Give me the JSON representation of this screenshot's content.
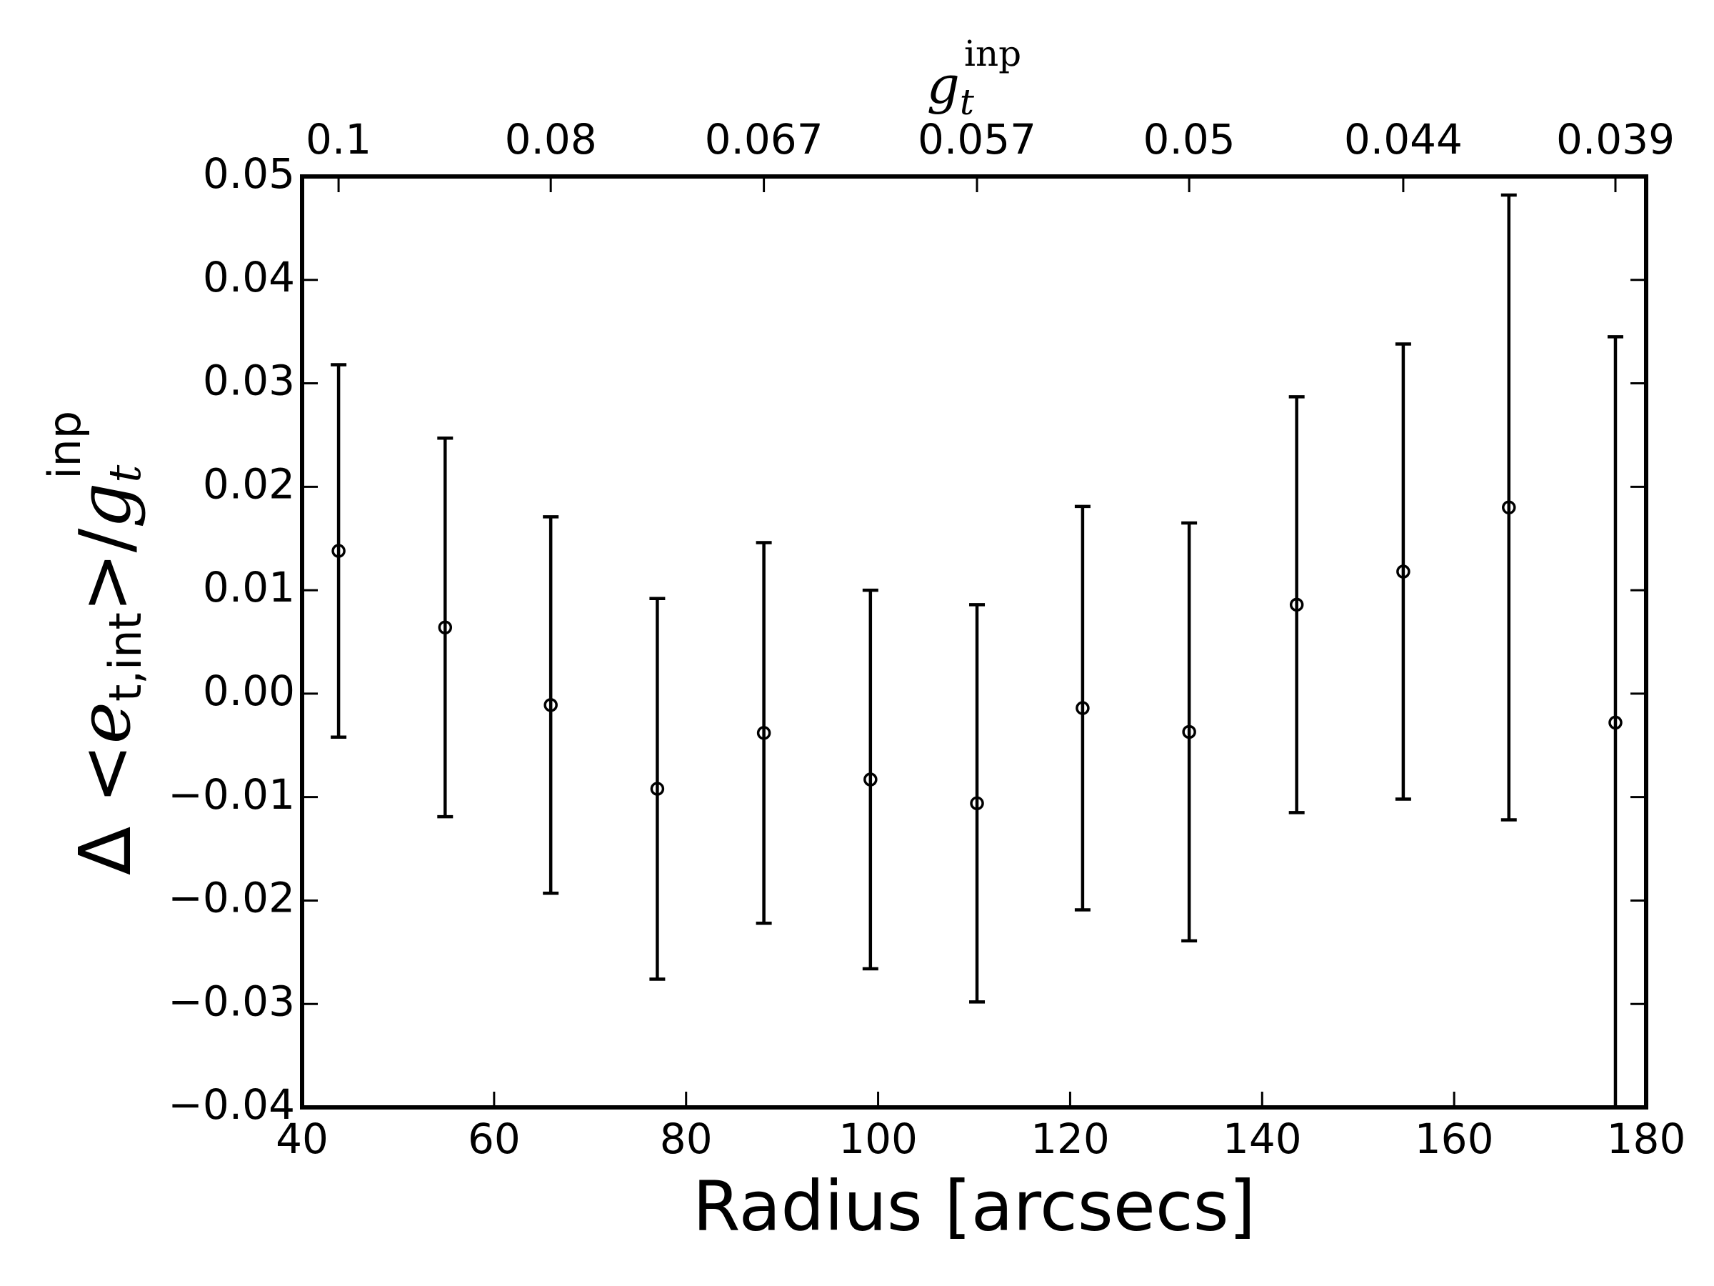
{
  "chart_data": {
    "type": "errorbar",
    "xlabel": "Radius [arcsecs]",
    "ylabel": [
      "Δ <",
      "e",
      "t,int",
      ">/",
      "g",
      "t",
      "inp"
    ],
    "x2label": [
      "g",
      "t",
      "inp"
    ],
    "color": "#000000",
    "x": [
      43.8,
      54.9,
      65.9,
      77.0,
      88.1,
      99.2,
      110.3,
      121.3,
      132.4,
      143.6,
      154.7,
      165.7,
      176.8
    ],
    "values": [
      0.0138,
      0.0064,
      -0.0011,
      -0.0092,
      -0.0038,
      -0.0083,
      -0.0106,
      -0.0014,
      -0.0037,
      0.0086,
      0.0118,
      0.018,
      -0.0028
    ],
    "errors": [
      0.018,
      0.0183,
      0.0182,
      0.0184,
      0.0184,
      0.0183,
      0.0192,
      0.0195,
      0.0202,
      0.0201,
      0.022,
      0.0302,
      0.0373
    ],
    "xlim": [
      40,
      180
    ],
    "xticks": [
      40,
      60,
      80,
      100,
      120,
      140,
      160,
      180
    ],
    "ylim": [
      -0.04,
      0.05
    ],
    "yticks": [
      {
        "value": -0.04,
        "label": "−0.04"
      },
      {
        "value": -0.03,
        "label": "−0.03"
      },
      {
        "value": -0.02,
        "label": "−0.02"
      },
      {
        "value": -0.01,
        "label": "−0.01"
      },
      {
        "value": 0,
        "label": "0.00"
      },
      0.01,
      0.02,
      0.03,
      0.04,
      0.05
    ],
    "x2ticks": [
      {
        "value": 43.8,
        "label": "0.1"
      },
      {
        "value": 65.9,
        "label": "0.08"
      },
      {
        "value": 88.1,
        "label": "0.067"
      },
      {
        "value": 110.3,
        "label": "0.057"
      },
      {
        "value": 132.4,
        "label": "0.05"
      },
      {
        "value": 154.7,
        "label": "0.044"
      },
      {
        "value": 176.8,
        "label": "0.039"
      }
    ]
  }
}
